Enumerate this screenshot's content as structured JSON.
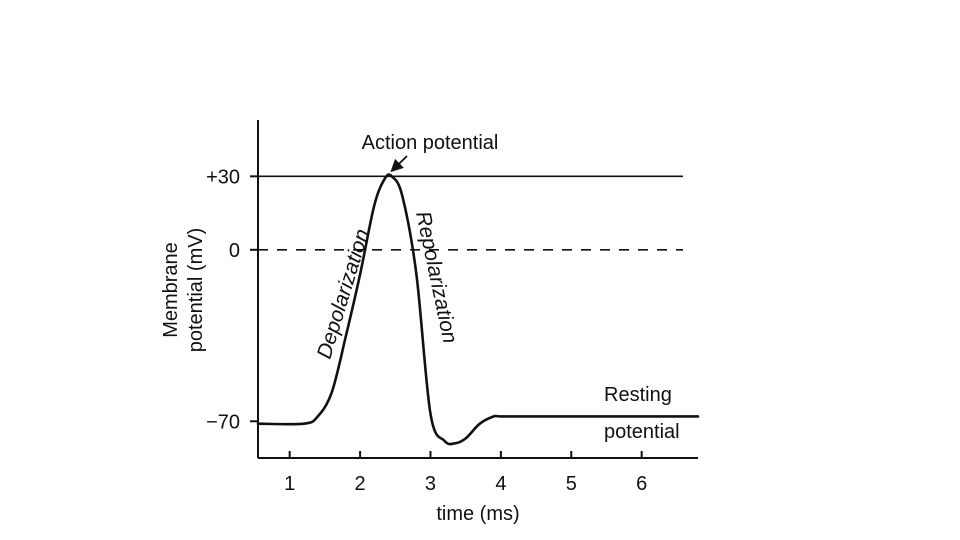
{
  "chart_data": {
    "type": "line",
    "xlabel": "time (ms)",
    "ylabel": [
      "Membrane",
      "potential (mV)"
    ],
    "xlim": [
      0.55,
      6.8
    ],
    "ylim": [
      -85,
      53
    ],
    "x_ticks": [
      1,
      2,
      3,
      4,
      5,
      6
    ],
    "y_ticks": [
      {
        "value": 30,
        "label": "+30"
      },
      {
        "value": 0,
        "label": "0"
      },
      {
        "value": -70,
        "label": "−70"
      }
    ],
    "reference_lines": [
      {
        "value": 30,
        "style": "solid"
      },
      {
        "value": 0,
        "style": "dashed"
      }
    ],
    "series": [
      {
        "x": [
          0.55,
          1.2,
          1.4,
          1.6,
          1.8,
          2.0,
          2.2,
          2.35,
          2.45,
          2.6,
          2.8,
          3.0,
          3.2,
          3.35,
          3.5,
          3.7,
          3.9,
          4.0,
          4.5,
          5.0,
          5.5,
          6.0,
          6.5,
          6.8
        ],
        "y": [
          -71,
          -71,
          -68,
          -58,
          -35,
          -10,
          18,
          29,
          30,
          22,
          -10,
          -67,
          -78,
          -79,
          -77,
          -71,
          -68,
          -68,
          -68,
          -68,
          -68,
          -68,
          -68,
          -68
        ]
      }
    ],
    "annotations": {
      "peak_label": "Action potential",
      "peak": {
        "x": 2.4,
        "y": 30
      },
      "rising_phase": "Depolarization",
      "falling_phase": "Repolarization",
      "resting_line1": "Resting",
      "resting_line2": "potential"
    }
  }
}
